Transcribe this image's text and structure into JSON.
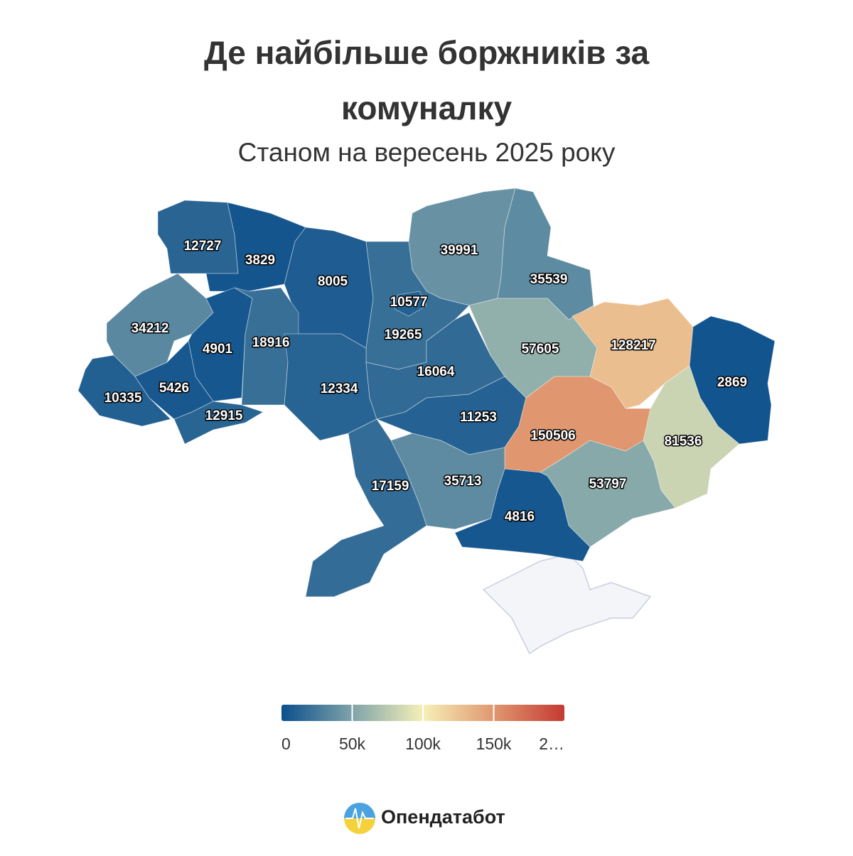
{
  "chart_data": {
    "type": "choropleth",
    "title": "Де найбільше боржників за комуналку",
    "subtitle": "Станом на вересень 2025 року",
    "values": [
      12727,
      3829,
      8005,
      39991,
      35539,
      19265,
      10577,
      34212,
      4901,
      18916,
      10335,
      5426,
      12915,
      12334,
      16064,
      11253,
      57605,
      128217,
      2869,
      150506,
      81536,
      53797,
      4816,
      35713,
      17159
    ],
    "color_stops": [
      {
        "value": 0,
        "color": "#0b4f8c"
      },
      {
        "value": 50000,
        "color": "#7fa3a9"
      },
      {
        "value": 100000,
        "color": "#f6f0b8"
      },
      {
        "value": 150000,
        "color": "#e0976f"
      },
      {
        "value": 200000,
        "color": "#c43a33"
      }
    ],
    "ticks": [
      0,
      {
        "value": 50000,
        "label": "50k"
      },
      {
        "value": 100000,
        "label": "100k"
      },
      {
        "value": 150000,
        "label": "150k"
      },
      {
        "value": 200000,
        "label": "2…"
      }
    ]
  },
  "brand": "Опендатабот"
}
